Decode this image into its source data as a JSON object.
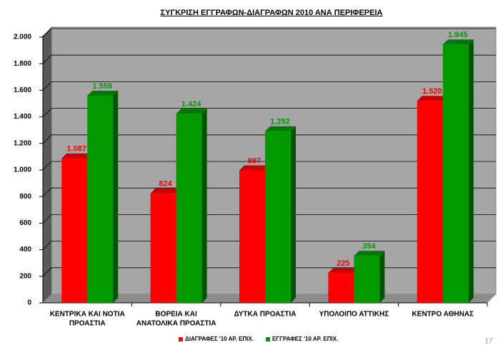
{
  "chart_data": {
    "type": "bar3d",
    "title": "ΣΥΓΚΡΙΣΗ ΕΓΓΡΑΦΩΝ-ΔΙΑΓΡΑΦΩΝ 2010 ΑΝΑ ΠΕΡΙΦΕΡΕΙΑ",
    "categories": [
      [
        "ΚΕΝΤΡΙΚΑ ΚΑΙ ΝΟΤΙΑ",
        "ΠΡΟΑΣΤΙΑ"
      ],
      [
        "ΒΟΡΕΙΑ ΚΑΙ",
        "ΑΝΑΤΟΛΙΚΑ ΠΡΟΑΣΤΙΑ"
      ],
      [
        "ΔΥΤΚΑ ΠΡΟΑΣΤΙΑ"
      ],
      [
        "ΥΠΟΛΟΙΠΟ ΑΤΤΙΚΗΣ"
      ],
      [
        "ΚΕΝΤΡΟ ΑΘΗΝΑΣ"
      ]
    ],
    "series": [
      {
        "name": "ΔΙΑΓΡΑΦΕΣ '10 ΑΡ. ΕΠΙΧ.",
        "color": "#ff0000",
        "values": [
          1087,
          824,
          997,
          225,
          1520
        ],
        "value_labels": [
          "1.087",
          "824",
          "997",
          "225",
          "1.520"
        ]
      },
      {
        "name": "ΕΓΓΡΑΦΕΣ '10 ΑΡ. ΕΠΙΧ.",
        "color": "#009900",
        "values": [
          1559,
          1424,
          1292,
          354,
          1945
        ],
        "value_labels": [
          "1.559",
          "1.424",
          "1.292",
          "354",
          "1.945"
        ]
      }
    ],
    "ylim": [
      0,
      2000
    ],
    "yticks": [
      0,
      200,
      400,
      600,
      800,
      {
        "value": 1000,
        "label": "1.000"
      },
      {
        "value": 1200,
        "label": "1.200"
      },
      {
        "value": 1400,
        "label": "1.400"
      },
      {
        "value": 1600,
        "label": "1.600"
      },
      {
        "value": 1800,
        "label": "1.800"
      },
      {
        "value": 2000,
        "label": "2.000"
      }
    ],
    "grid": true,
    "legend": "bottom",
    "page_number": "17"
  }
}
